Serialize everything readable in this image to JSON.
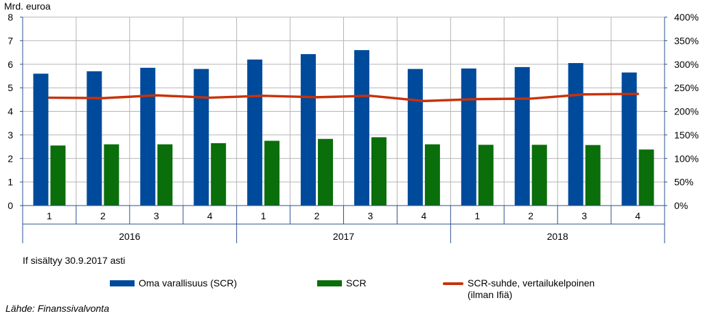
{
  "chart_data": {
    "type": "bar+line",
    "y_left_label": "Mrd. euroa",
    "y_left_ticks": [
      "0",
      "1",
      "2",
      "3",
      "4",
      "5",
      "6",
      "7",
      "8"
    ],
    "y_left_range": [
      0,
      8
    ],
    "y_right_ticks": [
      "0%",
      "50%",
      "100%",
      "150%",
      "200%",
      "250%",
      "300%",
      "350%",
      "400%"
    ],
    "y_right_range": [
      0,
      400
    ],
    "quarters": [
      "1",
      "2",
      "3",
      "4",
      "1",
      "2",
      "3",
      "4",
      "1",
      "2",
      "3",
      "4"
    ],
    "years": [
      "2016",
      "2017",
      "2018"
    ],
    "grid": true,
    "legend_position": "bottom",
    "series": [
      {
        "name": "Oma varallisuus (SCR)",
        "type": "bar",
        "axis": "left",
        "color": "#004A9C",
        "values": [
          5.6,
          5.7,
          5.85,
          5.8,
          6.2,
          6.43,
          6.6,
          5.8,
          5.82,
          5.88,
          6.05,
          5.65
        ]
      },
      {
        "name": "SCR",
        "type": "bar",
        "axis": "left",
        "color": "#0A6E0A",
        "values": [
          2.55,
          2.6,
          2.6,
          2.65,
          2.75,
          2.83,
          2.9,
          2.6,
          2.58,
          2.58,
          2.57,
          2.38
        ]
      },
      {
        "name": "SCR-suhde, vertailukelpoinen\n(ilman Ifiä)",
        "type": "line",
        "axis": "right",
        "color": "#C8320A",
        "values": [
          229,
          228,
          234,
          229,
          233,
          230,
          233,
          222,
          226,
          227,
          236,
          237
        ]
      }
    ]
  },
  "note": "If sisältyy 30.9.2017 asti",
  "source": "Lähde: Finanssivalvonta"
}
